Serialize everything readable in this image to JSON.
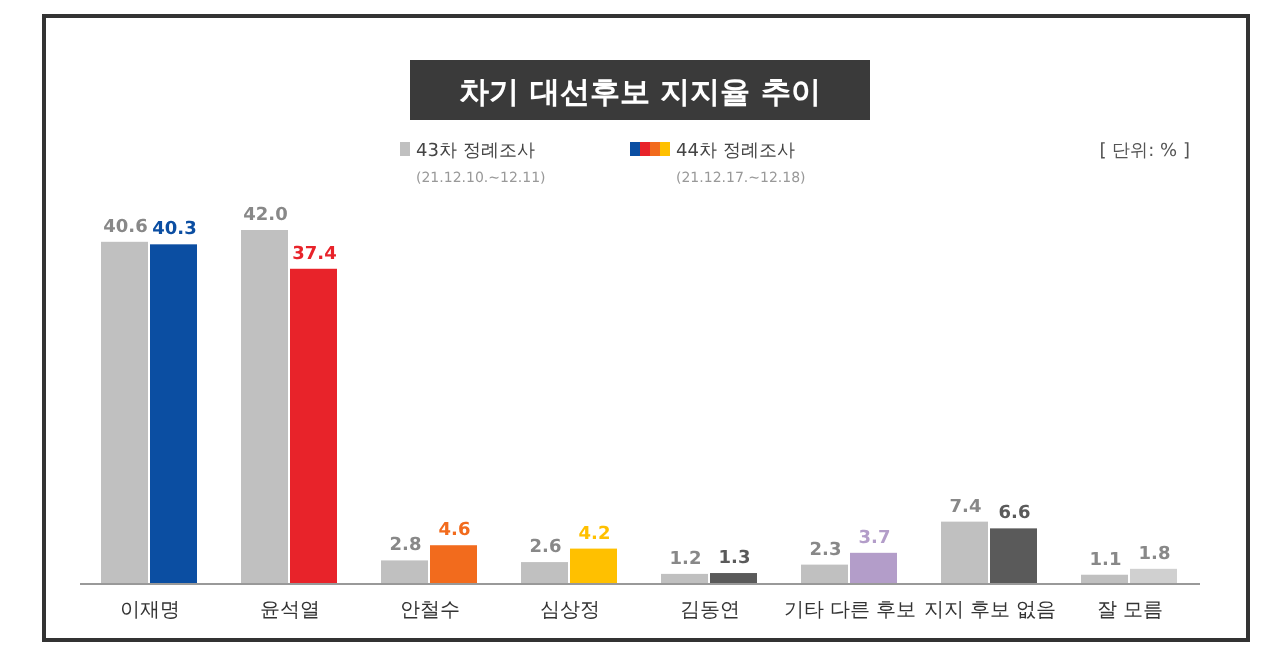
{
  "chart_data": {
    "type": "bar",
    "title": "차기 대선후보 지지율 추이",
    "categories": [
      "이재명",
      "윤석열",
      "안철수",
      "심상정",
      "김동연",
      "기타 다른 후보",
      "지지 후보 없음",
      "잘 모름"
    ],
    "series": [
      {
        "name": "43차 정례조사",
        "color": "#c0c0c0",
        "values": [
          40.6,
          42.0,
          2.8,
          2.6,
          1.2,
          2.3,
          7.4,
          1.1
        ],
        "value_labels": [
          "40.6",
          "42.0",
          "2.8",
          "2.6",
          "1.2",
          "2.3",
          "7.4",
          "1.1"
        ]
      },
      {
        "name": "44차 정례조사",
        "colors": [
          "#0b4ea2",
          "#e8232a",
          "#f26b1d",
          "#ffc000",
          "#5a5a5a",
          "#b39dc9",
          "#5a5a5a",
          "#d0d0d0"
        ],
        "values": [
          40.3,
          37.4,
          4.6,
          4.2,
          1.3,
          3.7,
          6.6,
          1.8
        ],
        "value_labels": [
          "40.3",
          "37.4",
          "4.6",
          "4.2",
          "1.3",
          "3.7",
          "6.6",
          "1.8"
        ]
      }
    ],
    "legend": "top",
    "grid": false,
    "annotations": [
      "(21.12.10.~12.11)",
      "(21.12.17.~12.18)",
      "[ 단위: % ]"
    ]
  }
}
